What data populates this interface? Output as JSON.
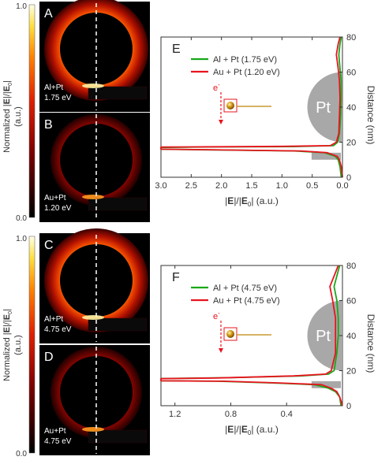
{
  "colorbar": {
    "label_plain": "Normalized |",
    "label_E": "E",
    "label_mid": "|/|",
    "label_E0": "E",
    "label_sub0": "0",
    "label_end": "|",
    "unit": "(a.u.)",
    "top_tick": "1.0",
    "bottom_tick": "0.0"
  },
  "maps": [
    {
      "letter": "A",
      "line1": "Al+Pt",
      "line2": "1.75 eV",
      "material": "Al"
    },
    {
      "letter": "B",
      "line1": "Au+Pt",
      "line2": "1.20 eV",
      "material": "Au"
    },
    {
      "letter": "C",
      "line1": "Al+Pt",
      "line2": "4.75 eV",
      "material": "Al"
    },
    {
      "letter": "D",
      "line1": "Au+Pt",
      "line2": "4.75 eV",
      "material": "Au"
    }
  ],
  "inset": {
    "electron_label": "e",
    "electron_sup": "-",
    "pt_label": "Pt"
  },
  "colors": {
    "al_series": "#18a818",
    "au_series": "#e8141e",
    "pt_shape": "#a8a8a8",
    "dashed_line": "#ffffff"
  },
  "chart_data": [
    {
      "panel": "E",
      "type": "line",
      "xlabel": "|E|/|E0| (a.u.)",
      "ylabel": "Distance (nm)",
      "xlim": [
        3.0,
        0.0
      ],
      "ylim": [
        0,
        80
      ],
      "x_ticks": [
        "3.0",
        "2.5",
        "2.0",
        "1.5",
        "1.0",
        "0.5",
        "0.0"
      ],
      "x_tick_values": [
        3.0,
        2.5,
        2.0,
        1.5,
        1.0,
        0.5,
        0.0
      ],
      "y_ticks": [
        "0",
        "20",
        "40",
        "60",
        "80"
      ],
      "y_tick_values": [
        0,
        20,
        40,
        60,
        80
      ],
      "legend_position": "top-left",
      "series": [
        {
          "name": "Al + Pt (1.75 eV)",
          "color": "#18a818",
          "points": [
            [
              0.02,
              0
            ],
            [
              0.04,
              6
            ],
            [
              0.07,
              10
            ],
            [
              0.12,
              12
            ],
            [
              0.3,
              14
            ],
            [
              0.8,
              15
            ],
            [
              1.9,
              15.5
            ],
            [
              3.0,
              16
            ],
            [
              3.0,
              17
            ],
            [
              2.2,
              17.3
            ],
            [
              0.8,
              17.5
            ],
            [
              0.15,
              18
            ],
            [
              0.08,
              20
            ],
            [
              0.05,
              25
            ],
            [
              0.03,
              35
            ],
            [
              0.02,
              45
            ],
            [
              0.02,
              55
            ],
            [
              0.04,
              62
            ],
            [
              0.06,
              70
            ],
            [
              0.04,
              76
            ],
            [
              0.02,
              80
            ]
          ]
        },
        {
          "name": "Au + Pt (1.20 eV)",
          "color": "#e8141e",
          "points": [
            [
              0.0,
              0
            ],
            [
              0.02,
              6
            ],
            [
              0.05,
              10
            ],
            [
              0.09,
              12
            ],
            [
              0.25,
              14
            ],
            [
              0.7,
              15
            ],
            [
              1.8,
              15.5
            ],
            [
              3.0,
              16
            ],
            [
              3.0,
              17.2
            ],
            [
              2.5,
              17.3
            ],
            [
              1.0,
              17.6
            ],
            [
              0.2,
              18
            ],
            [
              0.1,
              20
            ],
            [
              0.06,
              25
            ],
            [
              0.05,
              35
            ],
            [
              0.04,
              45
            ],
            [
              0.05,
              55
            ],
            [
              0.07,
              62
            ],
            [
              0.1,
              70
            ],
            [
              0.07,
              76
            ],
            [
              0.04,
              80
            ]
          ]
        }
      ]
    },
    {
      "panel": "F",
      "type": "line",
      "xlabel": "|E|/|E0| (a.u.)",
      "ylabel": "Distance (nm)",
      "xlim": [
        1.3,
        0.0
      ],
      "ylim": [
        0,
        80
      ],
      "x_ticks": [
        "1.2",
        "0.8",
        "0.4"
      ],
      "x_tick_values": [
        1.2,
        0.8,
        0.4
      ],
      "y_ticks": [
        "0",
        "20",
        "40",
        "60",
        "80"
      ],
      "y_tick_values": [
        0,
        20,
        40,
        60,
        80
      ],
      "legend_position": "top-left",
      "series": [
        {
          "name": "Al + Pt (4.75 eV)",
          "color": "#18a818",
          "points": [
            [
              0.01,
              0
            ],
            [
              0.02,
              5
            ],
            [
              0.05,
              8
            ],
            [
              0.1,
              10
            ],
            [
              0.2,
              12
            ],
            [
              0.5,
              13
            ],
            [
              0.9,
              14
            ],
            [
              1.3,
              14.2
            ],
            [
              1.3,
              15.5
            ],
            [
              0.8,
              16
            ],
            [
              0.3,
              17
            ],
            [
              0.1,
              18
            ],
            [
              0.06,
              20
            ],
            [
              0.04,
              30
            ],
            [
              0.03,
              40
            ],
            [
              0.03,
              50
            ],
            [
              0.04,
              60
            ],
            [
              0.06,
              68
            ],
            [
              0.04,
              74
            ],
            [
              0.02,
              80
            ]
          ]
        },
        {
          "name": "Au + Pt (4.75 eV)",
          "color": "#e8141e",
          "points": [
            [
              0.0,
              0
            ],
            [
              0.02,
              5
            ],
            [
              0.04,
              8
            ],
            [
              0.08,
              10
            ],
            [
              0.15,
              12
            ],
            [
              0.45,
              13
            ],
            [
              0.85,
              14
            ],
            [
              1.3,
              14.2
            ],
            [
              1.3,
              15.4
            ],
            [
              0.9,
              15.8
            ],
            [
              0.35,
              17
            ],
            [
              0.12,
              18
            ],
            [
              0.08,
              20
            ],
            [
              0.05,
              30
            ],
            [
              0.05,
              40
            ],
            [
              0.05,
              50
            ],
            [
              0.07,
              60
            ],
            [
              0.09,
              68
            ],
            [
              0.06,
              74
            ],
            [
              0.03,
              80
            ]
          ]
        }
      ]
    }
  ]
}
